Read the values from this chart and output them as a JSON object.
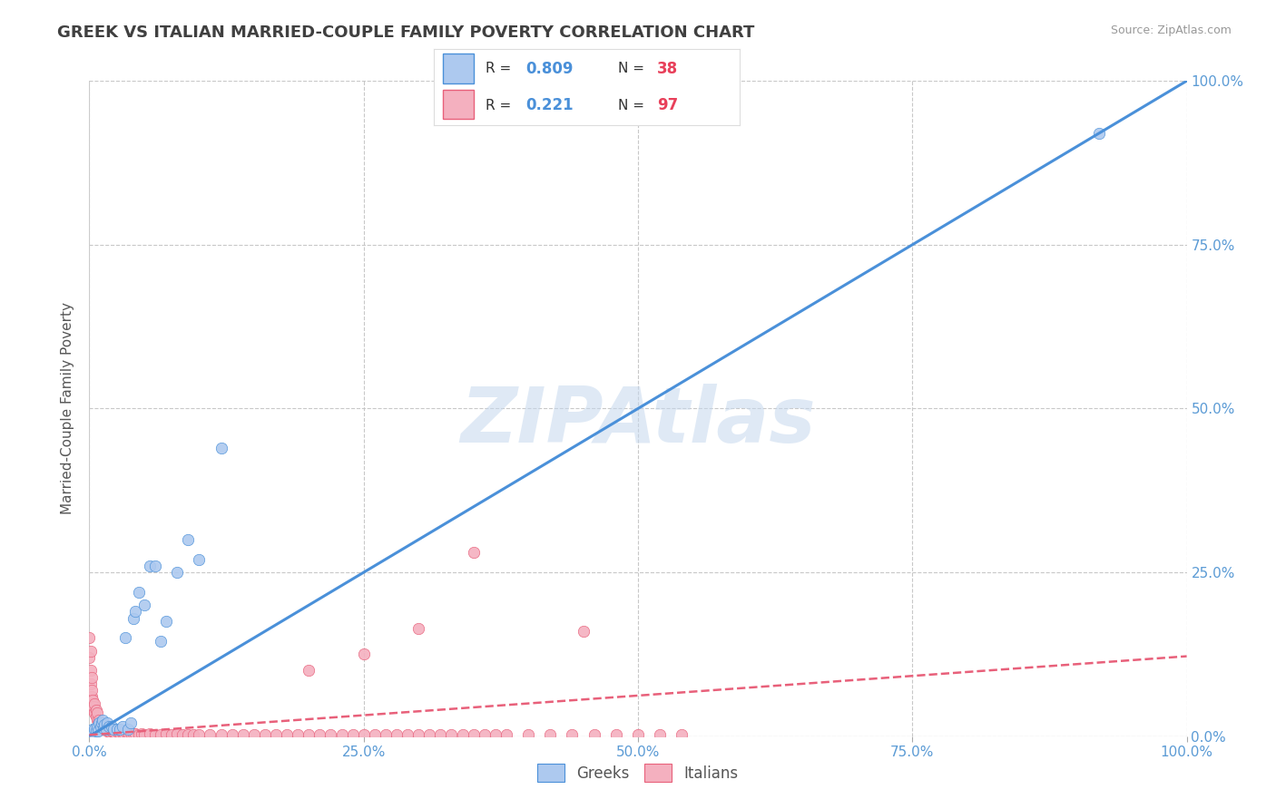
{
  "title": "GREEK VS ITALIAN MARRIED-COUPLE FAMILY POVERTY CORRELATION CHART",
  "source": "Source: ZipAtlas.com",
  "ylabel": "Married-Couple Family Poverty",
  "watermark": "ZIPAtlas",
  "greek_R": 0.809,
  "greek_N": 38,
  "italian_R": 0.221,
  "italian_N": 97,
  "greek_color": "#adc9ef",
  "italian_color": "#f4b0bf",
  "greek_line_color": "#4a90d9",
  "italian_line_color": "#e8607a",
  "title_color": "#404040",
  "axis_label_color": "#555555",
  "tick_color": "#5b9bd5",
  "background_color": "#ffffff",
  "grid_color": "#c8c8c8",
  "legend_R_color": "#4a90d9",
  "legend_N_color": "#e8405a",
  "greek_x": [
    0.0,
    0.002,
    0.003,
    0.004,
    0.005,
    0.006,
    0.007,
    0.008,
    0.009,
    0.01,
    0.011,
    0.012,
    0.013,
    0.014,
    0.015,
    0.016,
    0.018,
    0.02,
    0.022,
    0.025,
    0.028,
    0.03,
    0.033,
    0.035,
    0.038,
    0.04,
    0.042,
    0.045,
    0.05,
    0.055,
    0.06,
    0.065,
    0.07,
    0.08,
    0.09,
    0.1,
    0.12,
    0.92
  ],
  "greek_y": [
    0.0,
    0.005,
    0.01,
    0.005,
    0.01,
    0.008,
    0.015,
    0.008,
    0.02,
    0.015,
    0.02,
    0.025,
    0.012,
    0.018,
    0.01,
    0.02,
    0.015,
    0.015,
    0.01,
    0.01,
    0.01,
    0.015,
    0.15,
    0.01,
    0.02,
    0.18,
    0.19,
    0.22,
    0.2,
    0.26,
    0.26,
    0.145,
    0.175,
    0.25,
    0.3,
    0.27,
    0.44,
    0.92
  ],
  "italian_x": [
    0.0,
    0.0,
    0.001,
    0.001,
    0.001,
    0.002,
    0.002,
    0.002,
    0.003,
    0.003,
    0.004,
    0.004,
    0.005,
    0.005,
    0.006,
    0.006,
    0.007,
    0.007,
    0.008,
    0.009,
    0.01,
    0.01,
    0.011,
    0.012,
    0.013,
    0.014,
    0.015,
    0.016,
    0.017,
    0.018,
    0.019,
    0.02,
    0.022,
    0.024,
    0.026,
    0.028,
    0.03,
    0.032,
    0.034,
    0.036,
    0.038,
    0.04,
    0.042,
    0.045,
    0.048,
    0.05,
    0.055,
    0.06,
    0.065,
    0.07,
    0.075,
    0.08,
    0.085,
    0.09,
    0.095,
    0.1,
    0.11,
    0.12,
    0.13,
    0.14,
    0.15,
    0.16,
    0.17,
    0.18,
    0.19,
    0.2,
    0.21,
    0.22,
    0.23,
    0.24,
    0.25,
    0.26,
    0.27,
    0.28,
    0.29,
    0.3,
    0.31,
    0.32,
    0.33,
    0.34,
    0.35,
    0.36,
    0.37,
    0.38,
    0.4,
    0.42,
    0.44,
    0.46,
    0.48,
    0.5,
    0.52,
    0.54,
    0.45,
    0.35,
    0.3,
    0.25,
    0.2
  ],
  "italian_y": [
    0.15,
    0.12,
    0.1,
    0.13,
    0.08,
    0.09,
    0.06,
    0.07,
    0.05,
    0.055,
    0.04,
    0.045,
    0.035,
    0.05,
    0.03,
    0.04,
    0.025,
    0.035,
    0.02,
    0.025,
    0.015,
    0.02,
    0.015,
    0.012,
    0.01,
    0.012,
    0.01,
    0.008,
    0.01,
    0.008,
    0.006,
    0.008,
    0.006,
    0.005,
    0.006,
    0.005,
    0.005,
    0.004,
    0.005,
    0.004,
    0.005,
    0.004,
    0.004,
    0.003,
    0.004,
    0.003,
    0.004,
    0.003,
    0.003,
    0.004,
    0.003,
    0.004,
    0.003,
    0.003,
    0.003,
    0.003,
    0.003,
    0.003,
    0.003,
    0.003,
    0.003,
    0.003,
    0.003,
    0.003,
    0.003,
    0.003,
    0.003,
    0.003,
    0.003,
    0.003,
    0.003,
    0.003,
    0.003,
    0.003,
    0.003,
    0.003,
    0.003,
    0.003,
    0.003,
    0.003,
    0.003,
    0.003,
    0.003,
    0.003,
    0.003,
    0.003,
    0.003,
    0.003,
    0.003,
    0.003,
    0.003,
    0.003,
    0.16,
    0.28,
    0.165,
    0.125,
    0.1
  ],
  "greek_line_x": [
    0.0,
    1.0
  ],
  "greek_line_y": [
    0.0,
    1.0
  ],
  "italian_line_x": [
    0.0,
    1.0
  ],
  "italian_line_y": [
    0.002,
    0.122
  ],
  "xlim": [
    0.0,
    1.0
  ],
  "ylim": [
    0.0,
    1.0
  ],
  "xticks": [
    0.0,
    0.25,
    0.5,
    0.75,
    1.0
  ],
  "xtick_labels": [
    "0.0%",
    "25.0%",
    "50.0%",
    "75.0%",
    "100.0%"
  ],
  "yticks": [
    0.0,
    0.25,
    0.5,
    0.75,
    1.0
  ],
  "ytick_labels": [
    "0.0%",
    "25.0%",
    "50.0%",
    "75.0%",
    "100.0%"
  ]
}
